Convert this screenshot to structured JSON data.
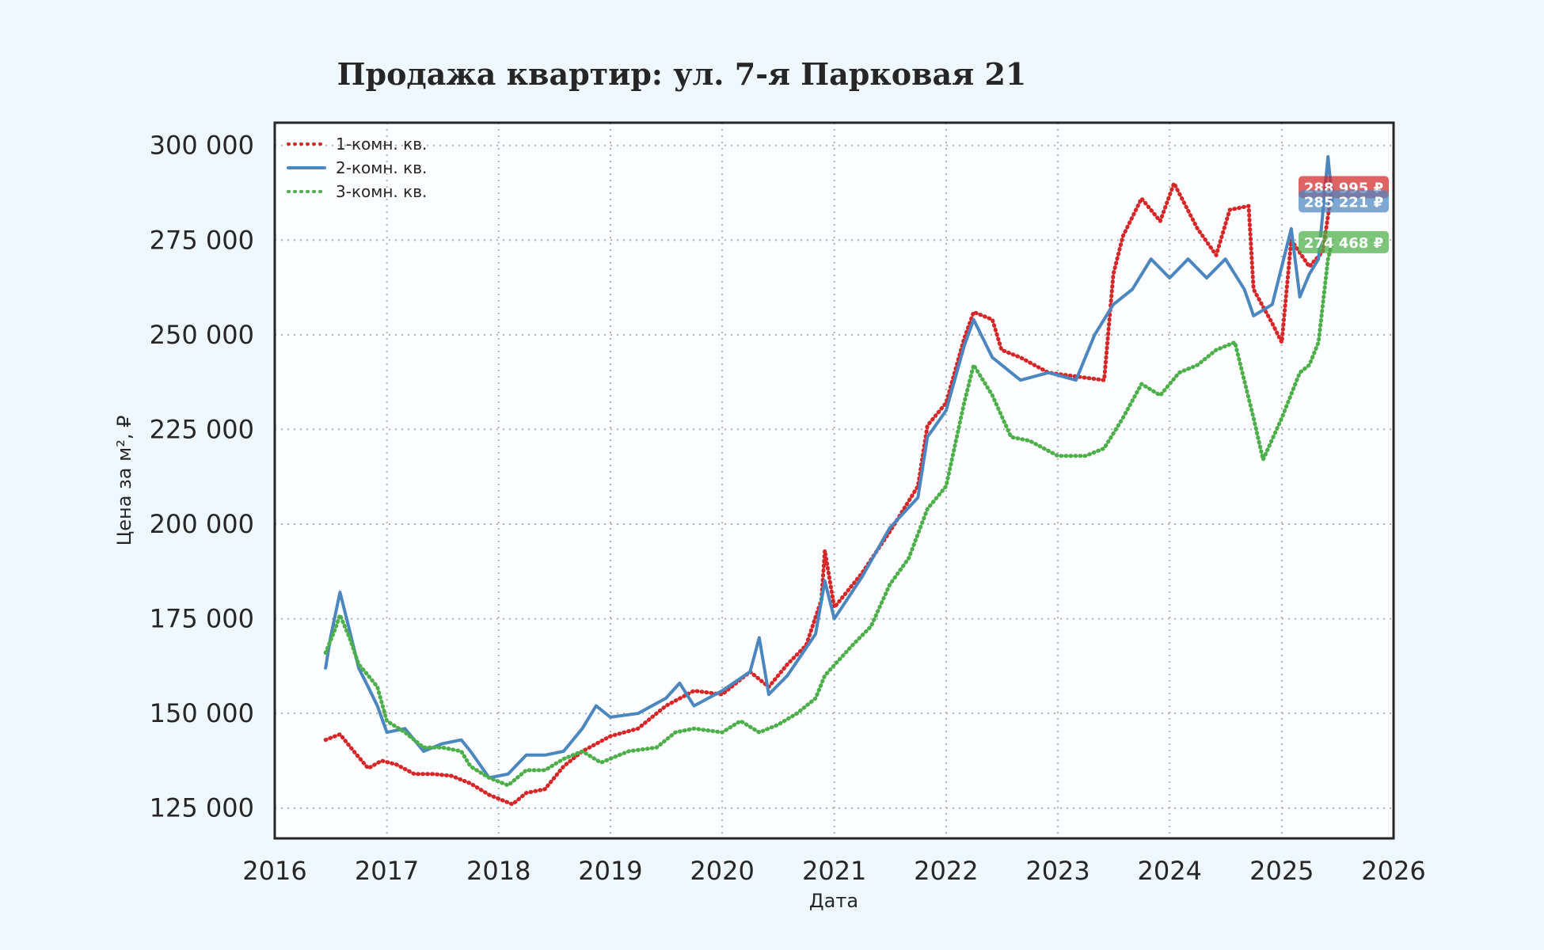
{
  "chart_data": {
    "type": "line",
    "title": "Продажа квартир: ул. 7-я Парковая 21",
    "xlabel": "Дата",
    "ylabel": "Цена за м², ₽",
    "xlim": [
      "2016-01-01",
      "2026-01-01"
    ],
    "ylim": [
      117000,
      306000
    ],
    "x_ticks": [
      "2016",
      "2017",
      "2018",
      "2019",
      "2020",
      "2021",
      "2022",
      "2023",
      "2024",
      "2025",
      "2026"
    ],
    "y_ticks": [
      125000,
      150000,
      175000,
      200000,
      225000,
      250000,
      275000,
      300000
    ],
    "y_tick_labels": [
      "125 000",
      "150 000",
      "175 000",
      "200 000",
      "225 000",
      "250 000",
      "275 000",
      "300 000"
    ],
    "grid": true,
    "legend_position": "top-left",
    "series": [
      {
        "name": "1-комн. кв.",
        "color": "#d62728",
        "line_style": "dotted",
        "last_value_label": "288 995 ₽",
        "points": [
          [
            "2016-06-15",
            143000
          ],
          [
            "2016-08-01",
            144500
          ],
          [
            "2016-09-15",
            140000
          ],
          [
            "2016-11-01",
            135500
          ],
          [
            "2016-12-15",
            137500
          ],
          [
            "2017-02-01",
            136500
          ],
          [
            "2017-04-01",
            134000
          ],
          [
            "2017-06-01",
            134000
          ],
          [
            "2017-08-01",
            133500
          ],
          [
            "2017-10-01",
            131500
          ],
          [
            "2017-12-01",
            128500
          ],
          [
            "2018-02-15",
            126000
          ],
          [
            "2018-04-01",
            129000
          ],
          [
            "2018-06-01",
            130000
          ],
          [
            "2018-08-01",
            136000
          ],
          [
            "2018-10-01",
            140000
          ],
          [
            "2019-01-01",
            144000
          ],
          [
            "2019-04-01",
            146000
          ],
          [
            "2019-07-01",
            152000
          ],
          [
            "2019-10-01",
            156000
          ],
          [
            "2020-01-01",
            155000
          ],
          [
            "2020-04-01",
            161000
          ],
          [
            "2020-06-01",
            157000
          ],
          [
            "2020-08-01",
            163000
          ],
          [
            "2020-10-01",
            168000
          ],
          [
            "2020-11-20",
            180000
          ],
          [
            "2020-12-01",
            193000
          ],
          [
            "2021-01-01",
            178000
          ],
          [
            "2021-04-01",
            187000
          ],
          [
            "2021-07-01",
            198000
          ],
          [
            "2021-10-01",
            210000
          ],
          [
            "2021-11-01",
            226000
          ],
          [
            "2022-01-01",
            232000
          ],
          [
            "2022-03-01",
            249000
          ],
          [
            "2022-04-01",
            256000
          ],
          [
            "2022-06-01",
            254000
          ],
          [
            "2022-07-01",
            246000
          ],
          [
            "2022-09-01",
            244000
          ],
          [
            "2022-12-01",
            240000
          ],
          [
            "2023-03-01",
            239000
          ],
          [
            "2023-06-01",
            238000
          ],
          [
            "2023-07-01",
            266000
          ],
          [
            "2023-08-01",
            276000
          ],
          [
            "2023-10-01",
            286000
          ],
          [
            "2023-12-01",
            280000
          ],
          [
            "2024-01-15",
            290000
          ],
          [
            "2024-04-01",
            278000
          ],
          [
            "2024-06-01",
            271000
          ],
          [
            "2024-07-15",
            283000
          ],
          [
            "2024-09-15",
            284000
          ],
          [
            "2024-10-01",
            262000
          ],
          [
            "2024-12-01",
            253000
          ],
          [
            "2025-01-01",
            248000
          ],
          [
            "2025-02-01",
            275000
          ],
          [
            "2025-04-01",
            268000
          ],
          [
            "2025-05-15",
            272000
          ],
          [
            "2025-06-15",
            288995
          ]
        ]
      },
      {
        "name": "2-комн. кв.",
        "color": "#4c86bf",
        "line_style": "solid",
        "last_value_label": "285 221 ₽",
        "points": [
          [
            "2016-06-15",
            162000
          ],
          [
            "2016-07-01",
            170000
          ],
          [
            "2016-08-01",
            182000
          ],
          [
            "2016-09-01",
            172000
          ],
          [
            "2016-10-01",
            162000
          ],
          [
            "2016-11-01",
            157000
          ],
          [
            "2016-12-01",
            152000
          ],
          [
            "2017-01-01",
            145000
          ],
          [
            "2017-03-01",
            146000
          ],
          [
            "2017-05-01",
            140000
          ],
          [
            "2017-07-01",
            142000
          ],
          [
            "2017-09-01",
            143000
          ],
          [
            "2017-10-01",
            140000
          ],
          [
            "2017-12-01",
            133000
          ],
          [
            "2018-02-01",
            134000
          ],
          [
            "2018-04-01",
            139000
          ],
          [
            "2018-06-01",
            139000
          ],
          [
            "2018-08-01",
            140000
          ],
          [
            "2018-10-01",
            146000
          ],
          [
            "2018-11-15",
            152000
          ],
          [
            "2019-01-01",
            149000
          ],
          [
            "2019-04-01",
            150000
          ],
          [
            "2019-07-01",
            154000
          ],
          [
            "2019-08-15",
            158000
          ],
          [
            "2019-10-01",
            152000
          ],
          [
            "2020-01-01",
            156000
          ],
          [
            "2020-04-01",
            161000
          ],
          [
            "2020-05-01",
            170000
          ],
          [
            "2020-06-01",
            155000
          ],
          [
            "2020-08-01",
            160000
          ],
          [
            "2020-11-01",
            171000
          ],
          [
            "2020-12-01",
            185000
          ],
          [
            "2021-01-01",
            175000
          ],
          [
            "2021-04-01",
            186000
          ],
          [
            "2021-07-01",
            199000
          ],
          [
            "2021-10-01",
            207000
          ],
          [
            "2021-11-01",
            223000
          ],
          [
            "2022-01-01",
            230000
          ],
          [
            "2022-03-01",
            247000
          ],
          [
            "2022-04-01",
            254000
          ],
          [
            "2022-06-01",
            244000
          ],
          [
            "2022-09-01",
            238000
          ],
          [
            "2022-12-01",
            240000
          ],
          [
            "2023-03-01",
            238000
          ],
          [
            "2023-05-01",
            250000
          ],
          [
            "2023-07-01",
            258000
          ],
          [
            "2023-09-01",
            262000
          ],
          [
            "2023-11-01",
            270000
          ],
          [
            "2024-01-01",
            265000
          ],
          [
            "2024-03-01",
            270000
          ],
          [
            "2024-05-01",
            265000
          ],
          [
            "2024-07-01",
            270000
          ],
          [
            "2024-09-01",
            262000
          ],
          [
            "2024-10-01",
            255000
          ],
          [
            "2024-12-01",
            258000
          ],
          [
            "2025-02-01",
            278000
          ],
          [
            "2025-03-01",
            260000
          ],
          [
            "2025-04-01",
            266000
          ],
          [
            "2025-05-01",
            270000
          ],
          [
            "2025-06-01",
            297000
          ],
          [
            "2025-06-15",
            285221
          ]
        ]
      },
      {
        "name": "3-комн. кв.",
        "color": "#4daf4a",
        "line_style": "dotted",
        "last_value_label": "274 468 ₽",
        "points": [
          [
            "2016-06-15",
            166000
          ],
          [
            "2016-07-15",
            172000
          ],
          [
            "2016-08-01",
            176000
          ],
          [
            "2016-09-01",
            170000
          ],
          [
            "2016-10-01",
            163000
          ],
          [
            "2016-11-01",
            160000
          ],
          [
            "2016-12-01",
            157000
          ],
          [
            "2017-01-01",
            148000
          ],
          [
            "2017-03-01",
            145000
          ],
          [
            "2017-05-01",
            141000
          ],
          [
            "2017-07-01",
            141000
          ],
          [
            "2017-09-01",
            140000
          ],
          [
            "2017-10-01",
            136000
          ],
          [
            "2017-12-01",
            133000
          ],
          [
            "2018-02-01",
            131000
          ],
          [
            "2018-04-01",
            135000
          ],
          [
            "2018-06-01",
            135000
          ],
          [
            "2018-08-01",
            138000
          ],
          [
            "2018-10-01",
            140000
          ],
          [
            "2018-12-01",
            137000
          ],
          [
            "2019-03-01",
            140000
          ],
          [
            "2019-06-01",
            141000
          ],
          [
            "2019-08-01",
            145000
          ],
          [
            "2019-10-01",
            146000
          ],
          [
            "2020-01-01",
            145000
          ],
          [
            "2020-03-01",
            148000
          ],
          [
            "2020-05-01",
            145000
          ],
          [
            "2020-07-01",
            147000
          ],
          [
            "2020-09-01",
            150000
          ],
          [
            "2020-11-01",
            154000
          ],
          [
            "2020-12-01",
            160000
          ],
          [
            "2021-03-01",
            168000
          ],
          [
            "2021-05-01",
            173000
          ],
          [
            "2021-07-01",
            184000
          ],
          [
            "2021-09-01",
            191000
          ],
          [
            "2021-11-01",
            204000
          ],
          [
            "2022-01-01",
            210000
          ],
          [
            "2022-03-01",
            232000
          ],
          [
            "2022-04-01",
            242000
          ],
          [
            "2022-06-01",
            234000
          ],
          [
            "2022-08-01",
            223000
          ],
          [
            "2022-10-01",
            222000
          ],
          [
            "2023-01-01",
            218000
          ],
          [
            "2023-04-01",
            218000
          ],
          [
            "2023-06-01",
            220000
          ],
          [
            "2023-08-01",
            228000
          ],
          [
            "2023-10-01",
            237000
          ],
          [
            "2023-12-01",
            234000
          ],
          [
            "2024-02-01",
            240000
          ],
          [
            "2024-04-01",
            242000
          ],
          [
            "2024-06-01",
            246000
          ],
          [
            "2024-08-01",
            248000
          ],
          [
            "2024-10-01",
            228000
          ],
          [
            "2024-11-01",
            217000
          ],
          [
            "2025-01-01",
            228000
          ],
          [
            "2025-03-01",
            240000
          ],
          [
            "2025-04-01",
            242000
          ],
          [
            "2025-05-01",
            248000
          ],
          [
            "2025-06-01",
            270000
          ],
          [
            "2025-06-15",
            274468
          ]
        ]
      }
    ]
  }
}
